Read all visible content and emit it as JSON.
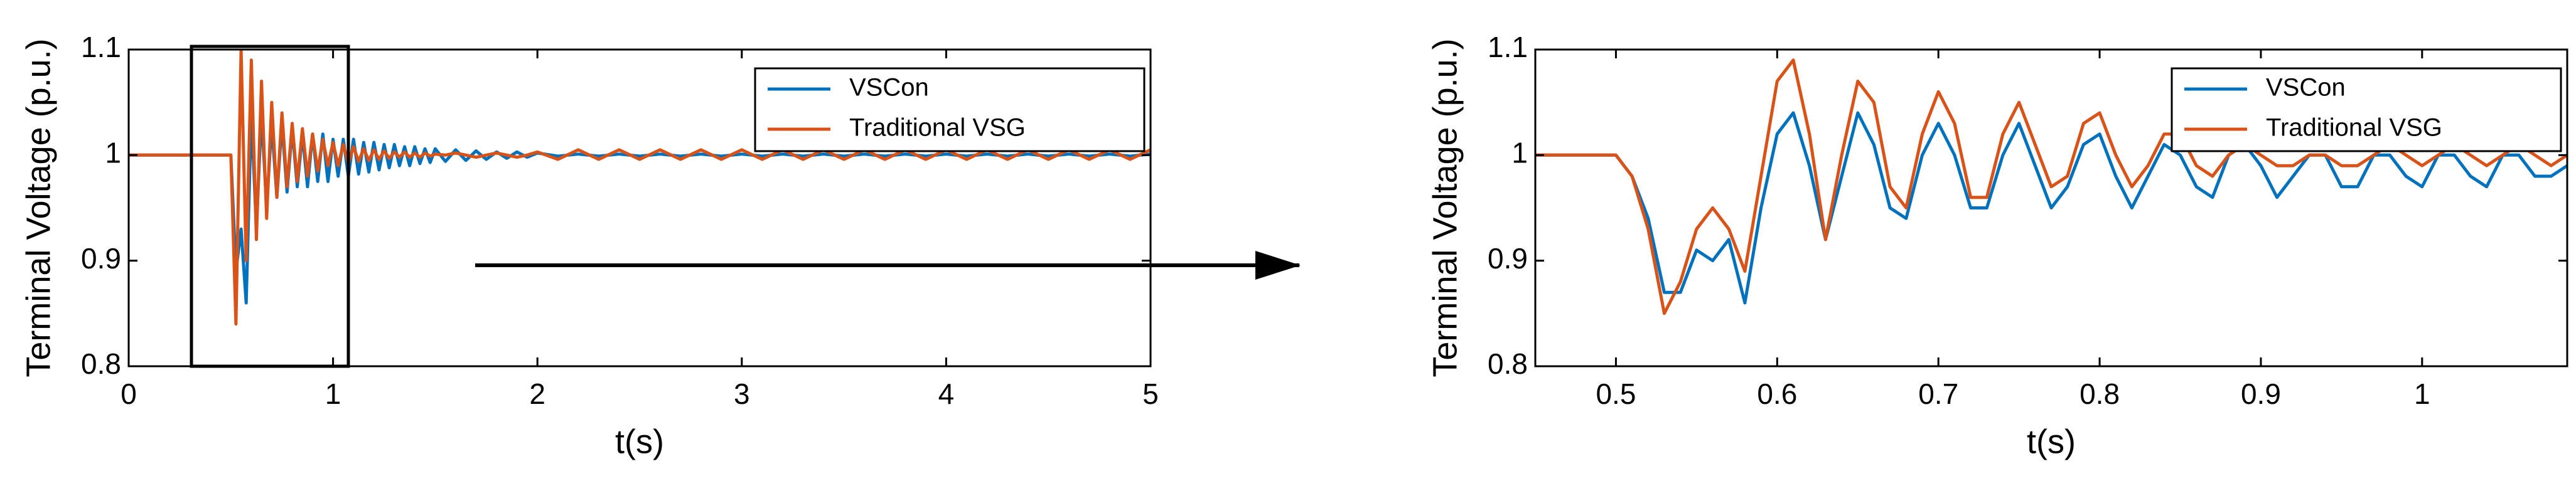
{
  "chart_data": [
    {
      "type": "line",
      "x_label": "t(s)",
      "y_label": "Terminal Voltage (p.u.)",
      "x": [
        0,
        0.5,
        0.525,
        0.55,
        0.575,
        0.6,
        0.625,
        0.65,
        0.675,
        0.7,
        0.725,
        0.75,
        0.775,
        0.8,
        0.825,
        0.85,
        0.875,
        0.9,
        0.925,
        0.95,
        0.975,
        1,
        1.025,
        1.05,
        1.075,
        1.1,
        1.125,
        1.15,
        1.175,
        1.2,
        1.225,
        1.25,
        1.275,
        1.3,
        1.325,
        1.35,
        1.375,
        1.4,
        1.425,
        1.45,
        1.475,
        1.5,
        1.55,
        1.6,
        1.65,
        1.7,
        1.75,
        1.8,
        1.85,
        1.9,
        1.95,
        2,
        2.1,
        2.2,
        2.3,
        2.4,
        2.5,
        2.6,
        2.7,
        2.8,
        2.9,
        3,
        3.1,
        3.2,
        3.3,
        3.4,
        3.5,
        3.6,
        3.7,
        3.8,
        3.9,
        4,
        4.1,
        4.2,
        4.3,
        4.4,
        4.5,
        4.6,
        4.7,
        4.8,
        4.9,
        5
      ],
      "series": [
        {
          "name": "VSCon",
          "color": "#0072bd",
          "values": [
            1,
            1,
            0.89,
            0.93,
            0.86,
            1.04,
            0.93,
            1.04,
            0.95,
            1.03,
            0.96,
            1.03,
            0.965,
            1.025,
            0.97,
            1.02,
            0.97,
            1.02,
            0.975,
            1.02,
            0.975,
            1.015,
            0.98,
            1.015,
            0.98,
            1.015,
            0.982,
            1.012,
            0.984,
            1.012,
            0.986,
            1.01,
            0.988,
            1.01,
            0.99,
            1.008,
            0.99,
            1.008,
            0.992,
            1.006,
            0.993,
            1.006,
            0.994,
            1.005,
            0.995,
            1.004,
            0.996,
            1.003,
            0.997,
            1.003,
            0.998,
            1.002,
            0.999,
            1.001,
            0.999,
            1.001,
            0.999,
            1.001,
            0.999,
            1.001,
            0.999,
            1.001,
            0.999,
            1.001,
            0.999,
            1.001,
            0.999,
            1.001,
            0.999,
            1.001,
            0.999,
            1.001,
            0.999,
            1.001,
            0.999,
            1.001,
            0.999,
            1.001,
            0.999,
            1.001,
            0.999,
            1.001
          ]
        },
        {
          "name": "Traditional VSG",
          "color": "#d95319",
          "values": [
            1,
            1,
            0.84,
            1.1,
            0.9,
            1.09,
            0.92,
            1.07,
            0.94,
            1.05,
            0.96,
            1.04,
            0.97,
            1.03,
            0.975,
            1.025,
            0.98,
            1.02,
            0.985,
            1.015,
            0.99,
            1.012,
            0.99,
            1.01,
            0.992,
            1.008,
            0.994,
            1.006,
            0.995,
            1.005,
            0.996,
            1.004,
            0.997,
            1.003,
            0.998,
            1.003,
            0.998,
            1.002,
            0.998,
            1.002,
            0.999,
            1.001,
            1,
            1.002,
            1,
            0.998,
            1,
            1.002,
            1,
            0.998,
            1,
            1.003,
            0.996,
            1.005,
            0.996,
            1.005,
            0.996,
            1.005,
            0.996,
            1.005,
            0.996,
            1.005,
            0.996,
            1.005,
            0.996,
            1.005,
            0.996,
            1.005,
            0.996,
            1.005,
            0.996,
            1.005,
            0.996,
            1.005,
            0.996,
            1.005,
            0.996,
            1.005,
            0.996,
            1.005,
            0.996,
            1.005
          ]
        }
      ],
      "xlim": [
        0,
        5
      ],
      "ylim": [
        0.8,
        1.1
      ],
      "xticks": [
        0,
        1,
        2,
        3,
        4,
        5
      ],
      "yticks": [
        0.8,
        0.9,
        1,
        1.1
      ],
      "legend": "upper right",
      "grid": false
    },
    {
      "type": "line",
      "x_label": "t(s)",
      "y_label": "Terminal Voltage (p.u.)",
      "x": [
        0.45,
        0.46,
        0.47,
        0.48,
        0.49,
        0.5,
        0.51,
        0.52,
        0.53,
        0.54,
        0.55,
        0.56,
        0.57,
        0.58,
        0.59,
        0.6,
        0.61,
        0.62,
        0.63,
        0.64,
        0.65,
        0.66,
        0.67,
        0.68,
        0.69,
        0.7,
        0.71,
        0.72,
        0.73,
        0.74,
        0.75,
        0.76,
        0.77,
        0.78,
        0.79,
        0.8,
        0.81,
        0.82,
        0.83,
        0.84,
        0.85,
        0.86,
        0.87,
        0.88,
        0.89,
        0.9,
        0.91,
        0.92,
        0.93,
        0.94,
        0.95,
        0.96,
        0.97,
        0.98,
        0.99,
        1,
        1.01,
        1.02,
        1.03,
        1.04,
        1.05,
        1.06,
        1.07,
        1.08,
        1.09
      ],
      "series": [
        {
          "name": "VSCon",
          "color": "#0072bd",
          "values": [
            1,
            1,
            1,
            1,
            1,
            1,
            0.98,
            0.94,
            0.87,
            0.87,
            0.91,
            0.9,
            0.92,
            0.86,
            0.95,
            1.02,
            1.04,
            0.99,
            0.92,
            0.98,
            1.04,
            1.01,
            0.95,
            0.94,
            1,
            1.03,
            1,
            0.95,
            0.95,
            1,
            1.03,
            0.99,
            0.95,
            0.97,
            1.01,
            1.02,
            0.98,
            0.95,
            0.98,
            1.01,
            1,
            0.97,
            0.96,
            1,
            1.01,
            0.99,
            0.96,
            0.98,
            1,
            1,
            0.97,
            0.97,
            1,
            1,
            0.98,
            0.97,
            1,
            1,
            0.98,
            0.97,
            1,
            1,
            0.98,
            0.98,
            0.99
          ]
        },
        {
          "name": "Traditional VSG",
          "color": "#d95319",
          "values": [
            1,
            1,
            1,
            1,
            1,
            1,
            0.98,
            0.93,
            0.85,
            0.88,
            0.93,
            0.95,
            0.93,
            0.89,
            0.98,
            1.07,
            1.09,
            1.02,
            0.92,
            1,
            1.07,
            1.05,
            0.97,
            0.95,
            1.02,
            1.06,
            1.03,
            0.96,
            0.96,
            1.02,
            1.05,
            1.01,
            0.97,
            0.98,
            1.03,
            1.04,
            1,
            0.97,
            0.99,
            1.02,
            1.02,
            0.99,
            0.98,
            1,
            1.01,
            1,
            0.99,
            0.99,
            1,
            1,
            0.99,
            0.99,
            1,
            1.01,
            1,
            0.99,
            1,
            1.01,
            1,
            0.99,
            1,
            1.01,
            1,
            0.99,
            1
          ]
        }
      ],
      "xlim": [
        0.45,
        1.09
      ],
      "ylim": [
        0.8,
        1.1
      ],
      "xticks": [
        0.5,
        0.6,
        0.7,
        0.8,
        0.9,
        1
      ],
      "yticks": [
        0.8,
        0.9,
        1,
        1.1
      ],
      "legend": "upper right",
      "grid": false
    }
  ]
}
